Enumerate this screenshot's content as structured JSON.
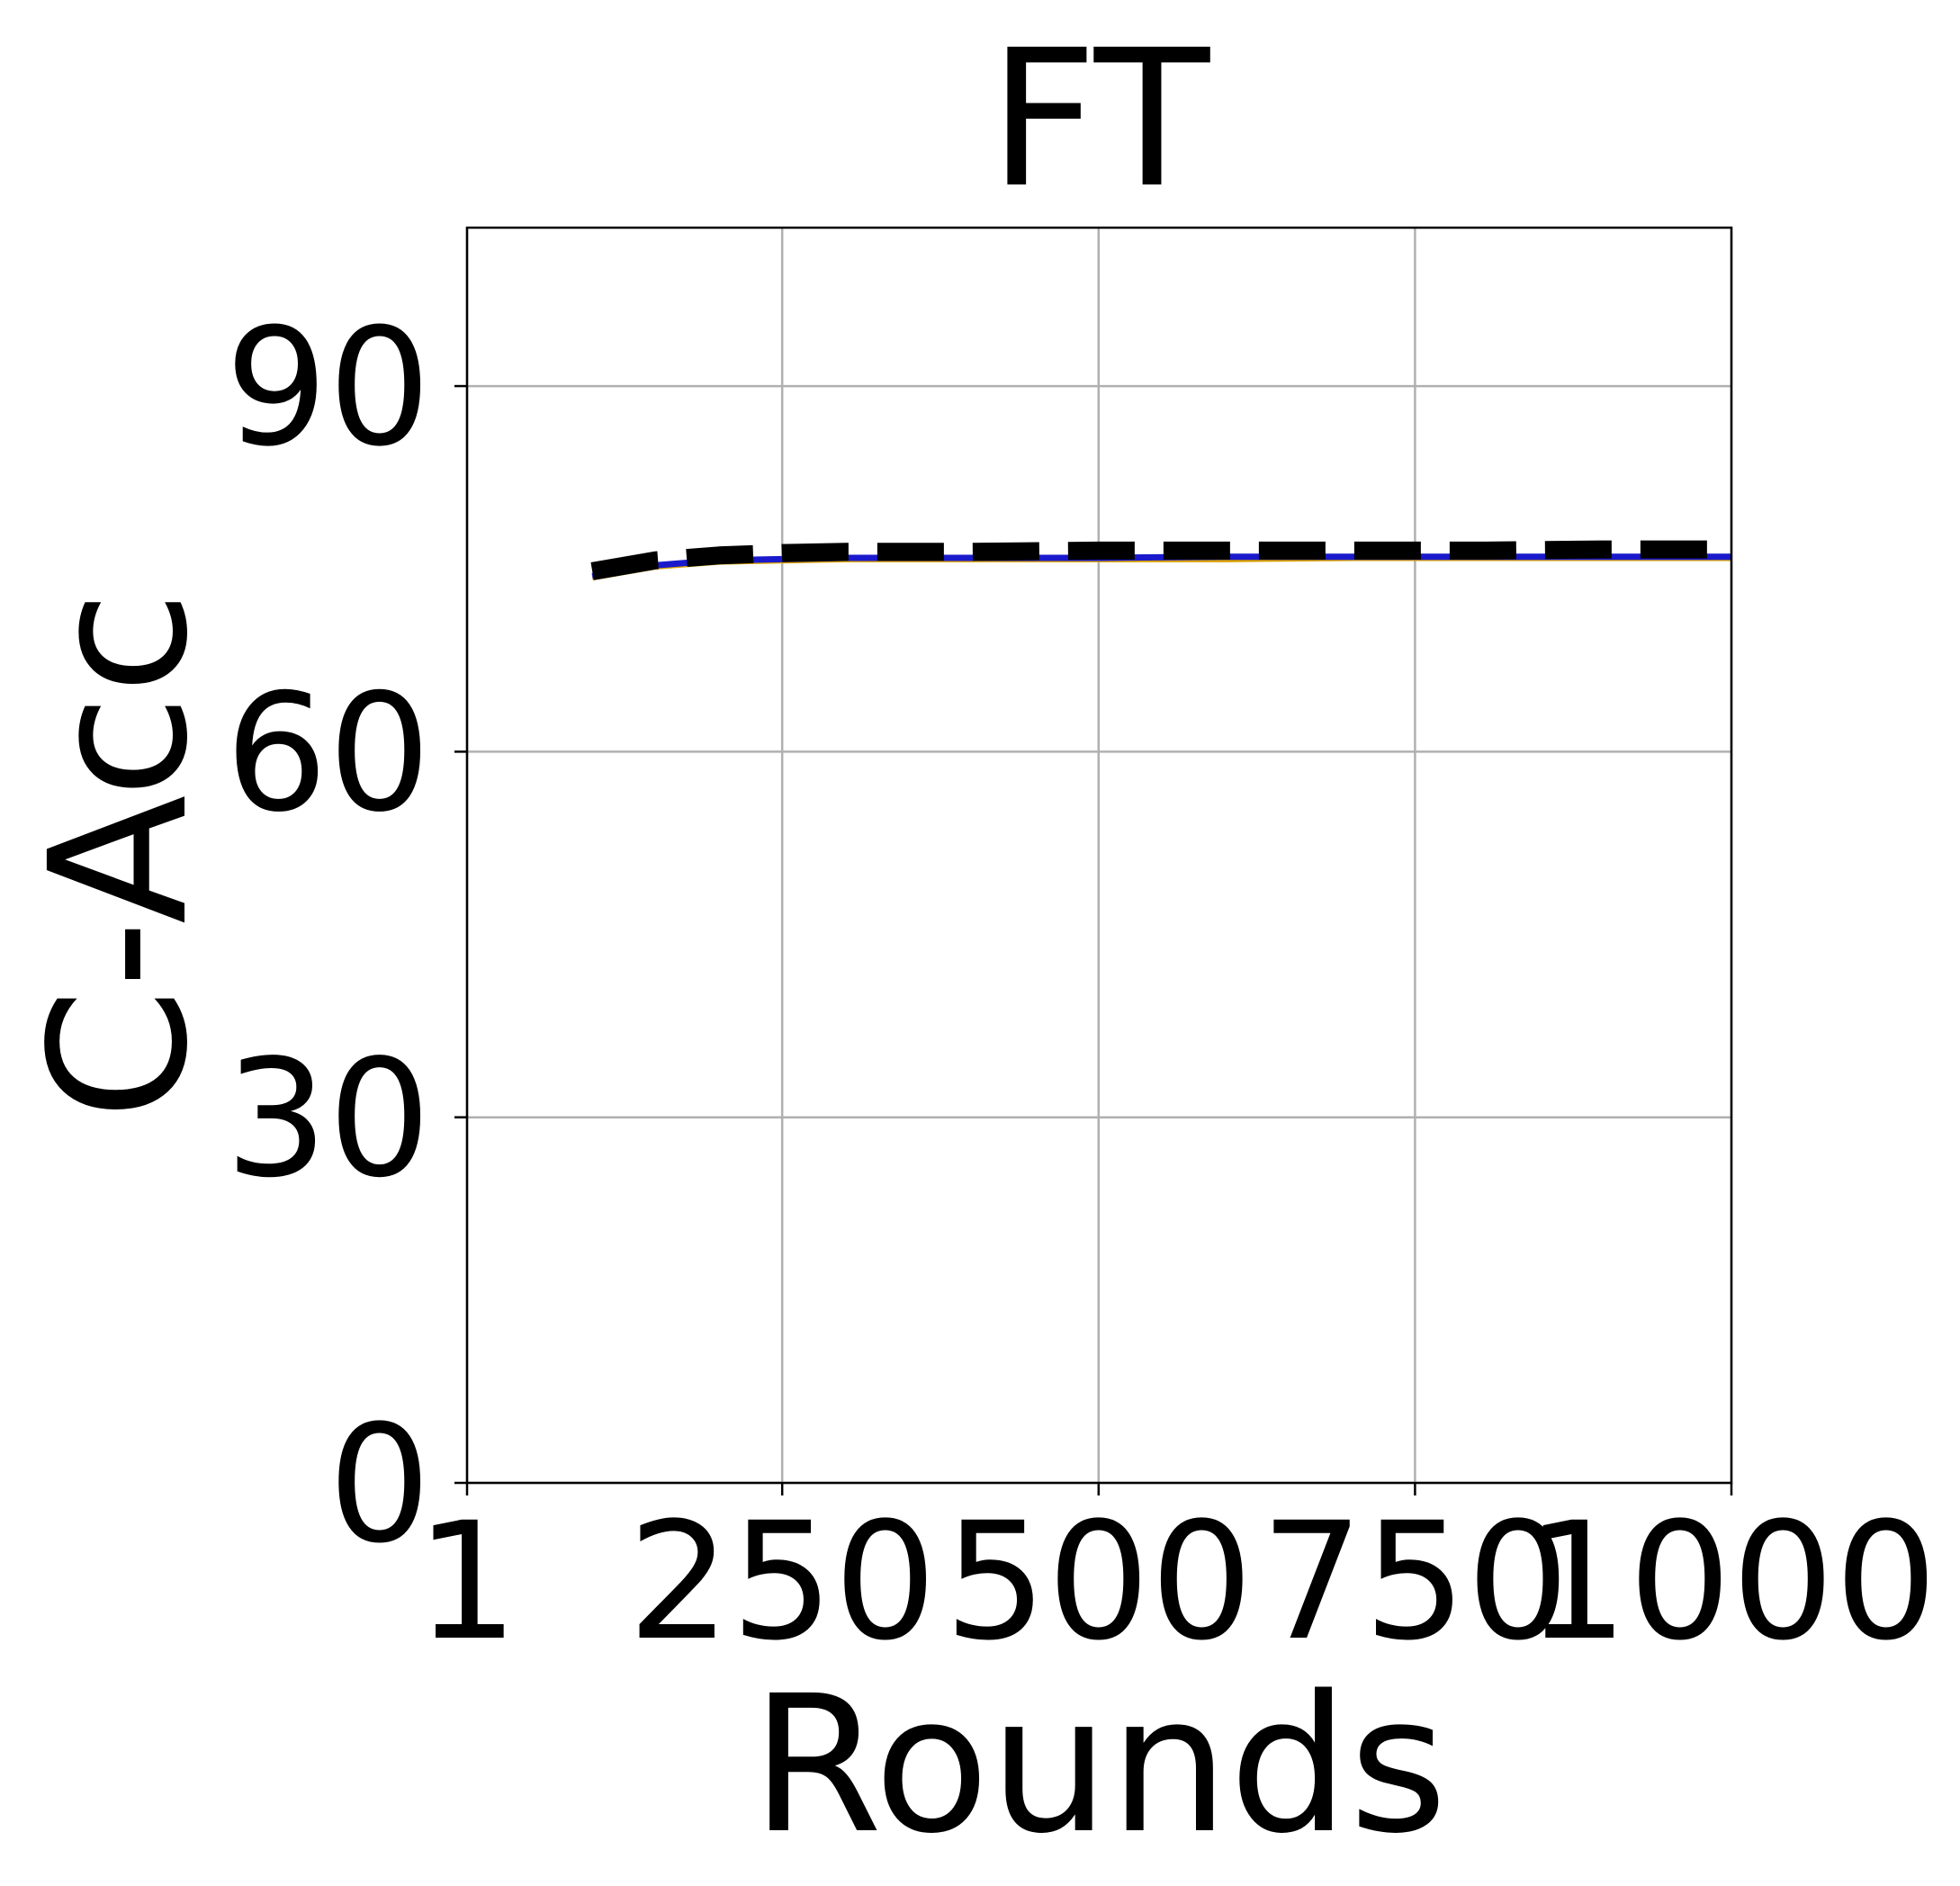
{
  "chart_data": {
    "type": "line",
    "title": "FT",
    "xlabel": "Rounds",
    "ylabel": "C-Acc",
    "xlim": [
      1,
      1000
    ],
    "ylim": [
      0,
      103
    ],
    "x_ticks": [
      1,
      250,
      500,
      750,
      1000
    ],
    "y_ticks": [
      0,
      30,
      60,
      90
    ],
    "grid": true,
    "series": [
      {
        "style": "solid",
        "color": "#d9a000",
        "x": [
          100,
          150,
          200,
          250,
          300,
          400,
          500,
          600,
          700,
          800,
          900,
          1000
        ],
        "y": [
          74.3,
          75.2,
          75.6,
          75.7,
          75.8,
          75.8,
          75.8,
          75.8,
          75.9,
          75.9,
          75.9,
          75.9
        ]
      },
      {
        "style": "solid",
        "color": "#1a1acc",
        "x": [
          100,
          150,
          200,
          250,
          300,
          400,
          500,
          600,
          700,
          800,
          900,
          1000
        ],
        "y": [
          74.4,
          75.3,
          75.7,
          75.8,
          75.9,
          75.9,
          75.9,
          76.0,
          76.0,
          76.0,
          76.0,
          76.0
        ]
      },
      {
        "style": "dashed",
        "color": "#000000",
        "x": [
          100,
          150,
          200,
          250,
          300,
          400,
          500,
          600,
          700,
          800,
          900,
          1000
        ],
        "y": [
          74.8,
          75.7,
          76.1,
          76.3,
          76.4,
          76.4,
          76.5,
          76.5,
          76.5,
          76.5,
          76.6,
          76.6
        ]
      }
    ]
  }
}
